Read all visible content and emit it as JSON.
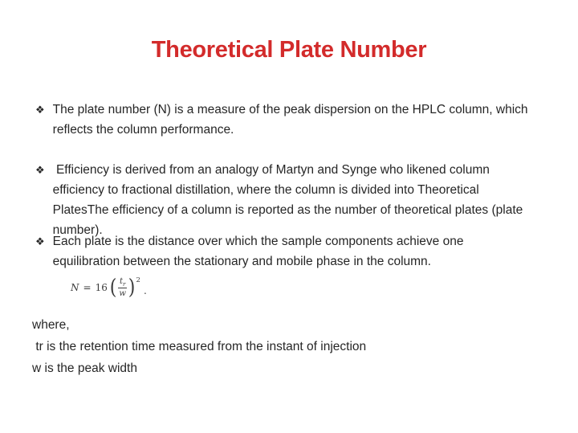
{
  "slide": {
    "title": "Theoretical Plate Number",
    "title_color": "#d32b2b",
    "bullet_glyph": "❖",
    "bullets": [
      {
        "text": "The plate number (N) is a measure of the peak dispersion on the HPLC column, which\nreflects the column performance."
      },
      {
        "text": " Efficiency is derived from an analogy of Martyn and Synge who likened column\nefficiency to fractional distillation, where the column is divided into Theoretical\nPlatesThe efficiency of a column is reported as the number of theoretical plates (plate\nnumber)."
      },
      {
        "text": "Each plate is the distance over which the sample components achieve one\nequilibration between the stationary and mobile phase in the column."
      }
    ],
    "formula": {
      "lhs": "N",
      "equals": "=",
      "coefficient": "16",
      "open_paren": "(",
      "numerator_base": "t",
      "numerator_sub": "r",
      "denominator": "w",
      "close_paren": ")",
      "exponent": "2",
      "period": "."
    },
    "footer": {
      "where_label": "where,",
      "tr_line": " tr is the retention time measured from the instant of injection",
      "w_line": "w is the peak width"
    }
  }
}
